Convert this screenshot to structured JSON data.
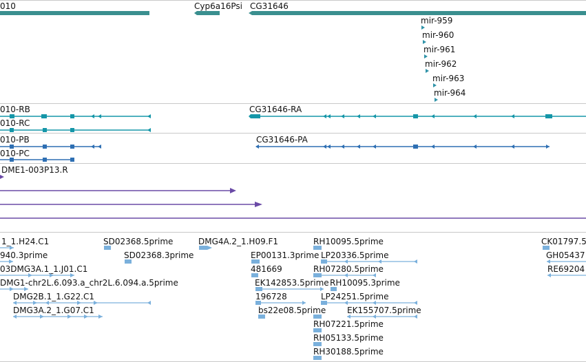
{
  "colors": {
    "gene": "#3a8f8f",
    "mirna": "#2f93a8",
    "transcript_a": "#1596a8",
    "transcript_b": "#2e6fb3",
    "cdna": "#6a4aa6",
    "est": "#7ab0dc",
    "separator": "#c8c8c8"
  },
  "tracks": {
    "genes": {
      "labels": [
        "010",
        "Cyp6a16Psi",
        "CG31646"
      ]
    },
    "mirnas": {
      "labels": [
        "mir-959",
        "mir-960",
        "mir-961",
        "mir-962",
        "mir-963",
        "mir-964"
      ]
    },
    "transcripts_ra": {
      "labels": [
        "010-RB",
        "010-RC",
        "CG31646-RA"
      ]
    },
    "transcripts_pa": {
      "labels": [
        "010-PB",
        "010-PC",
        "CG31646-PA"
      ]
    },
    "cdna": {
      "labels": [
        "DME1-003P13.R"
      ]
    },
    "est": {
      "labels": [
        "1_1.H24.C1",
        "SD02368.5prime",
        "DMG4A.2_1.H09.F1",
        "RH10095.5prime",
        "CK01797.5",
        "940.3prime",
        "SD02368.3prime",
        "EP00131.3prime",
        "LP20336.5prime",
        "GH05437",
        "03DMG3A.1_1.J01.C1",
        "481669",
        "RH07280.5prime",
        "RE69204",
        "DMG1-chr2L.6.093.a_chr2L.6.094.a.5prime",
        "EK142853.5prime",
        "RH10095.3prime",
        "DMG2B.1_1.G22.C1",
        "196728",
        "LP24251.5prime",
        "DMG3A.2_1.G07.C1",
        "bs22e08.5prime",
        "EK155707.5prime",
        "RH07221.5prime",
        "RH05133.5prime",
        "RH30188.5prime"
      ]
    }
  }
}
